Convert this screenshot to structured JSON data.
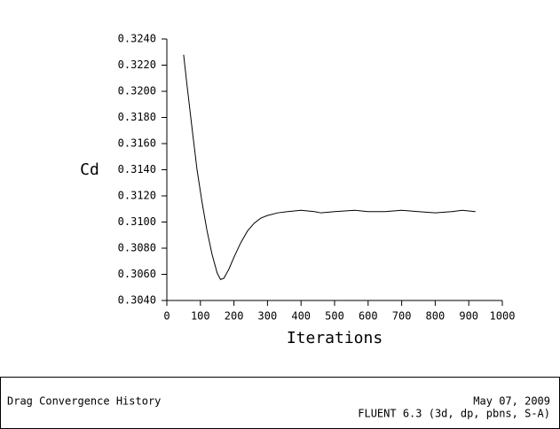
{
  "chart_data": {
    "type": "line",
    "x_label": "Iterations",
    "y_label": "Cd",
    "x": [
      50,
      60,
      75,
      90,
      105,
      120,
      135,
      150,
      160,
      170,
      185,
      200,
      220,
      240,
      260,
      280,
      300,
      330,
      360,
      400,
      440,
      460,
      500,
      560,
      600,
      650,
      700,
      750,
      800,
      850,
      880,
      920
    ],
    "series": [
      {
        "color": "#000000",
        "values": [
          0.3228,
          0.3205,
          0.3172,
          0.314,
          0.3115,
          0.3093,
          0.3075,
          0.3061,
          0.3056,
          0.3057,
          0.3064,
          0.3073,
          0.3084,
          0.3093,
          0.3099,
          0.3103,
          0.3105,
          0.3107,
          0.3108,
          0.3109,
          0.3108,
          0.3107,
          0.3108,
          0.3109,
          0.3108,
          0.3108,
          0.3109,
          0.3108,
          0.3107,
          0.3108,
          0.3109,
          0.3108
        ]
      }
    ],
    "xlim": [
      0,
      1000
    ],
    "xticks": [
      0,
      100,
      200,
      300,
      400,
      500,
      600,
      700,
      800,
      900,
      1000
    ],
    "ylim": [
      0.304,
      0.324
    ],
    "yticks": [
      {
        "value": 0.304,
        "label": "0.3040"
      },
      {
        "value": 0.306,
        "label": "0.3060"
      },
      {
        "value": 0.308,
        "label": "0.3080"
      },
      {
        "value": 0.31,
        "label": "0.3100"
      },
      {
        "value": 0.312,
        "label": "0.3120"
      },
      {
        "value": 0.314,
        "label": "0.3140"
      },
      {
        "value": 0.316,
        "label": "0.3160"
      },
      {
        "value": 0.318,
        "label": "0.3180"
      },
      {
        "value": 0.32,
        "label": "0.3200"
      },
      {
        "value": 0.322,
        "label": "0.3220"
      },
      {
        "value": 0.324,
        "label": "0.3240"
      }
    ]
  },
  "footer": {
    "title": "Drag Convergence History",
    "date": "May 07, 2009",
    "solver": "FLUENT 6.3 (3d, dp, pbns, S-A)"
  }
}
